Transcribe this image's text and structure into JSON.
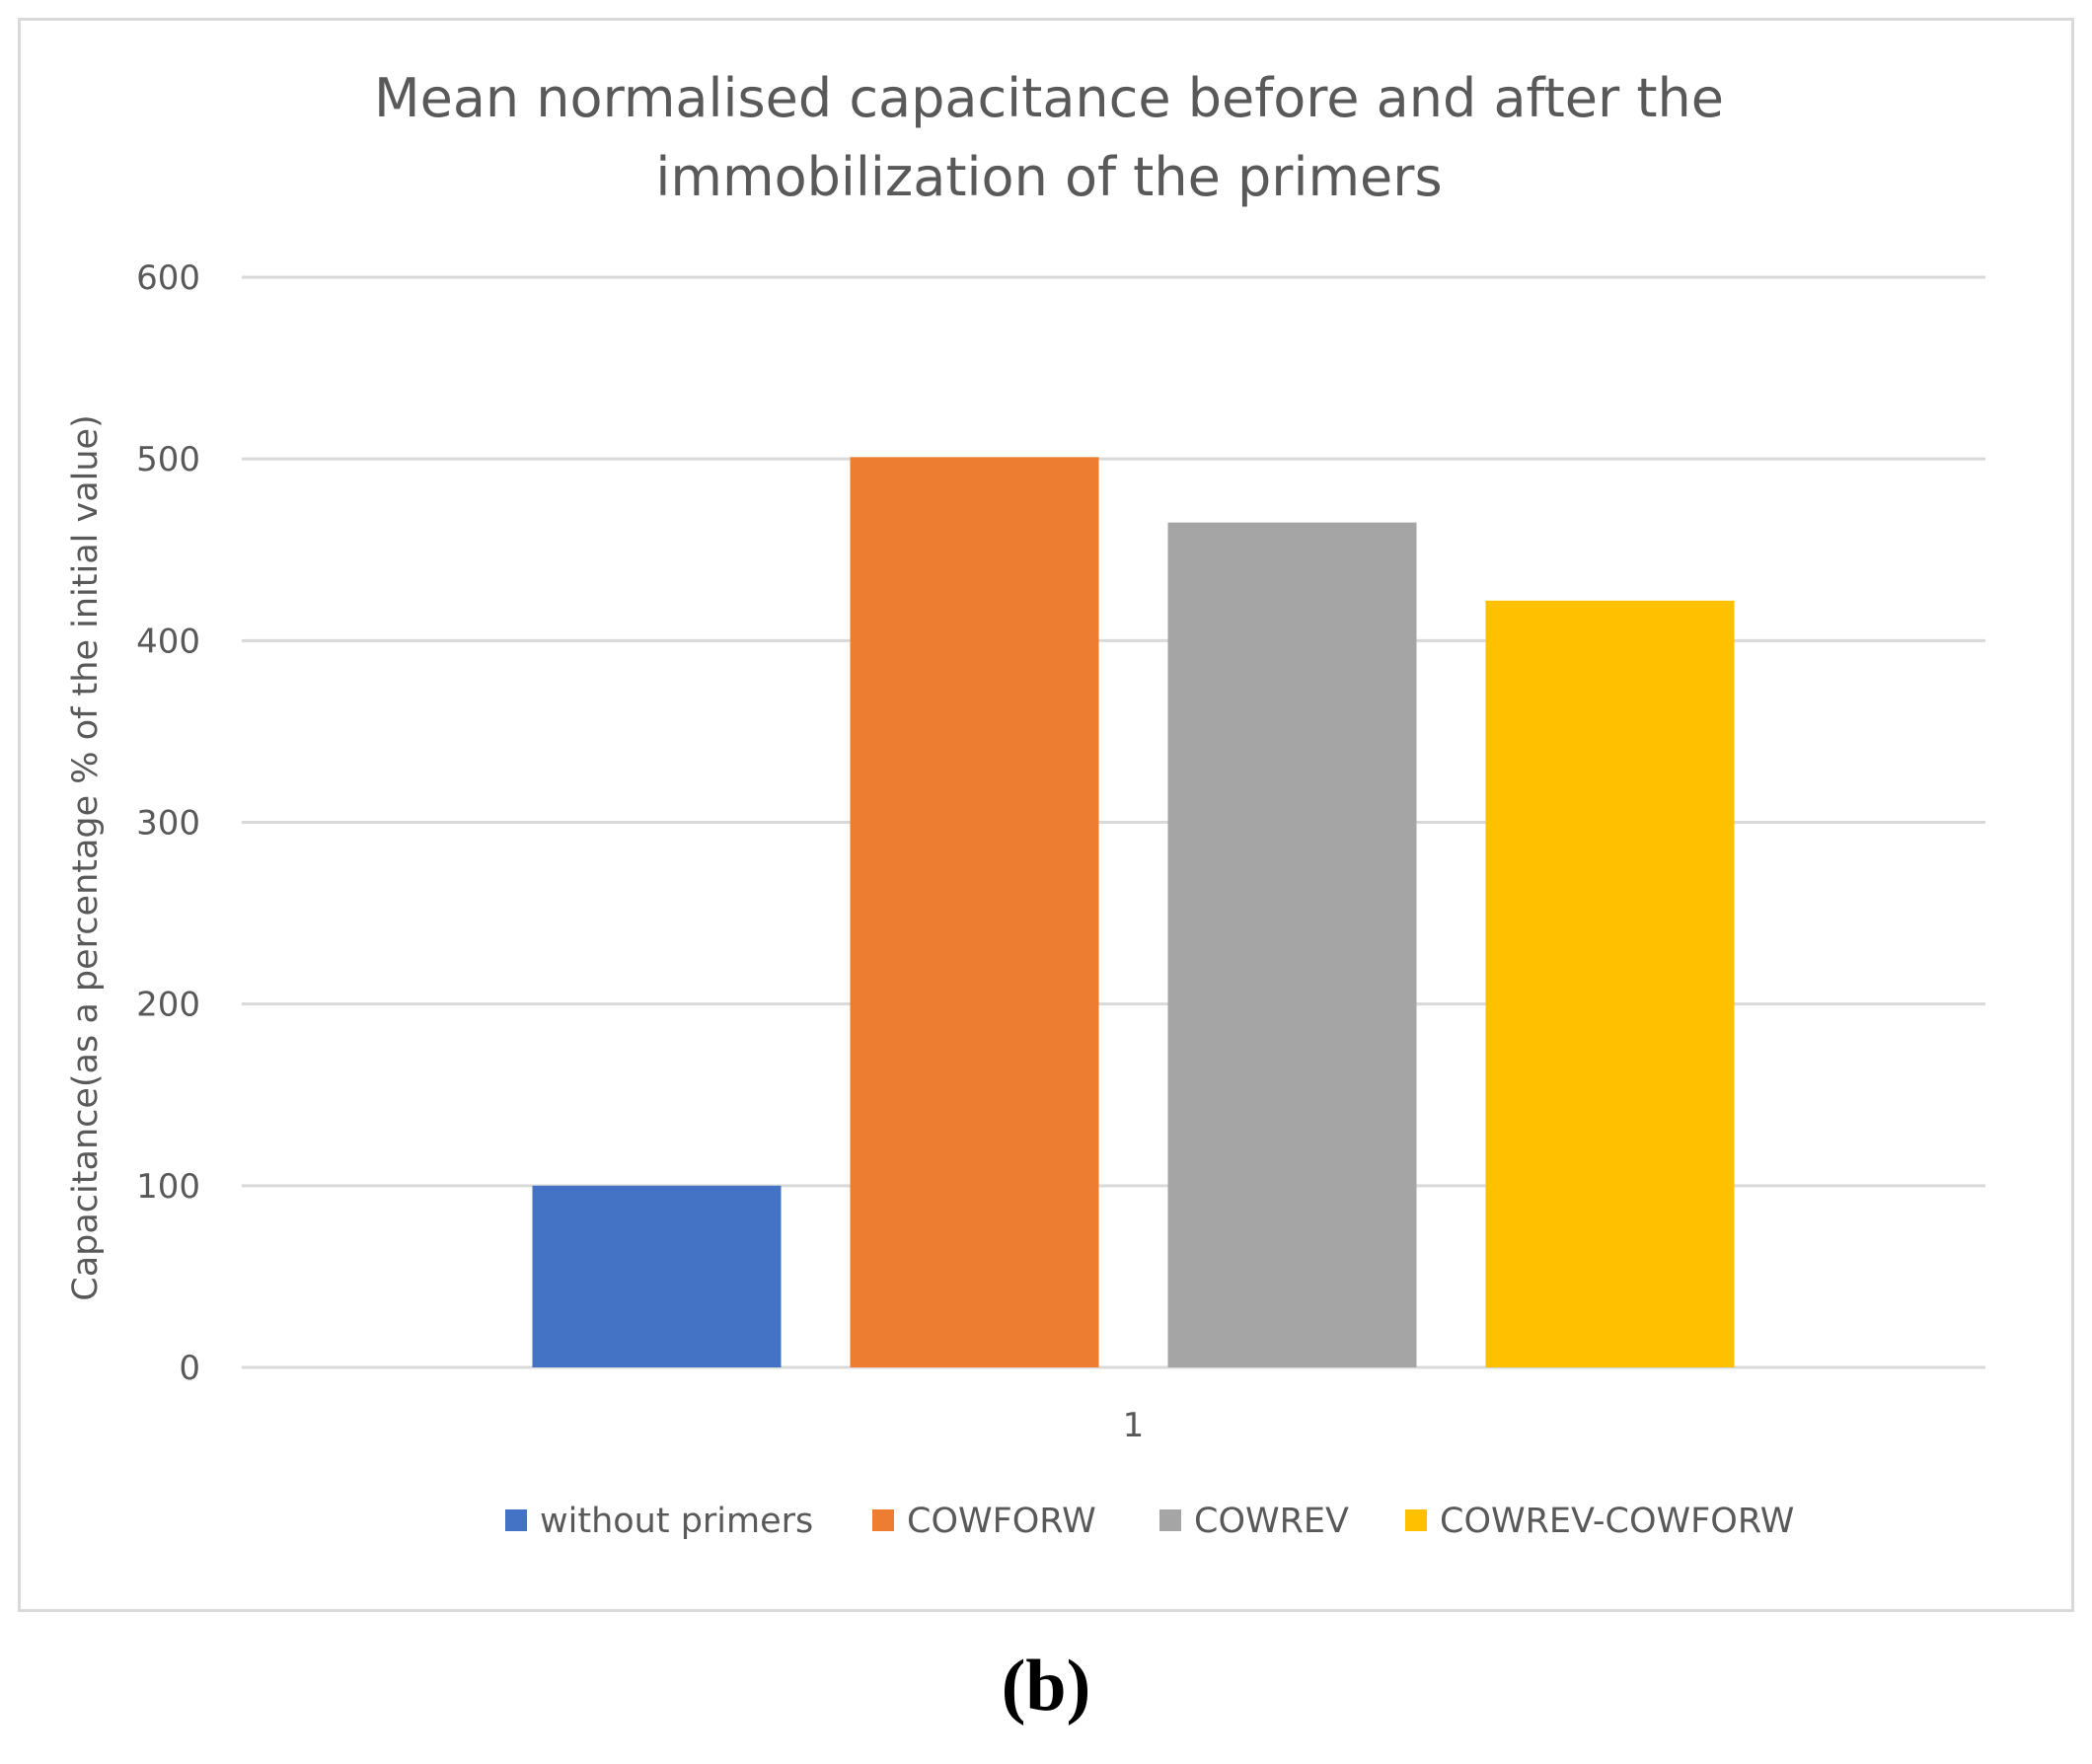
{
  "chart_data": {
    "type": "bar",
    "title_lines": [
      "Mean normalised capacitance before and after the",
      "immobilization of the primers"
    ],
    "ylabel": "Capacitance(as a percentage % of the initial value)",
    "xlabel": "",
    "categories": [
      "1"
    ],
    "ylim": [
      0,
      600
    ],
    "yticks": [
      0,
      100,
      200,
      300,
      400,
      500,
      600
    ],
    "grid": true,
    "legend_position": "bottom",
    "series": [
      {
        "name": "without primers",
        "values": [
          100
        ],
        "color": "#4472c4"
      },
      {
        "name": "COWFORW",
        "values": [
          501
        ],
        "color": "#ed7d31"
      },
      {
        "name": "COWREV",
        "values": [
          465
        ],
        "color": "#a5a5a5"
      },
      {
        "name": "COWREV-COWFORW",
        "values": [
          422
        ],
        "color": "#ffc000"
      }
    ]
  },
  "panel_label": "(b)"
}
